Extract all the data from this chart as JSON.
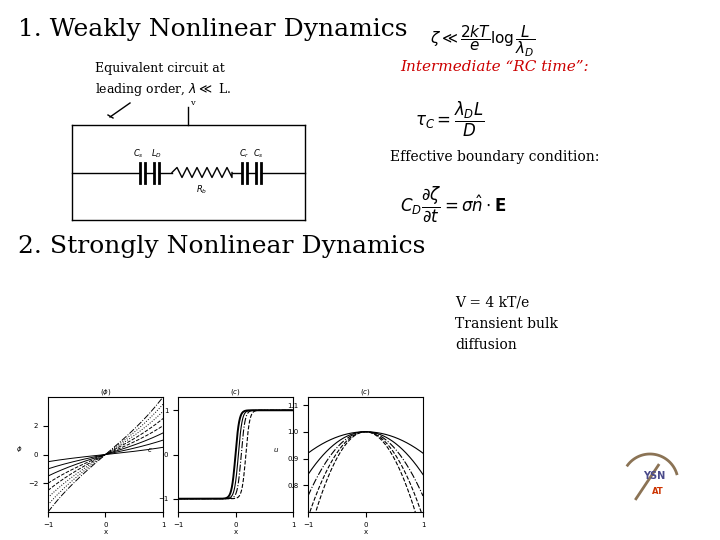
{
  "bg_color": "#ffffff",
  "title1": "1. Weakly Nonlinear Dynamics",
  "title2": "2. Strongly Nonlinear Dynamics",
  "subtitle1": "Equivalent circuit at\nleading order, $\\lambda \\ll$ L.",
  "rc_label": "Intermediate “RC time”:",
  "rc_formula": "$\\tau_C = \\dfrac{\\lambda_D L}{D}$",
  "ebc_label": "Effective boundary condition:",
  "ebc_formula": "$C_D \\dfrac{\\partial \\zeta}{\\partial t} = \\sigma \\hat{n} \\cdot \\mathbf{E}$",
  "top_formula": "$\\zeta \\ll \\dfrac{2kT}{e} \\log \\dfrac{L}{\\lambda_D}$",
  "vkt_label": "V = 4 kT/e\nTransient bulk\ndiffusion",
  "title1_fontsize": 18,
  "title2_fontsize": 18,
  "rc_label_color": "#cc0000",
  "text_color": "#000000"
}
